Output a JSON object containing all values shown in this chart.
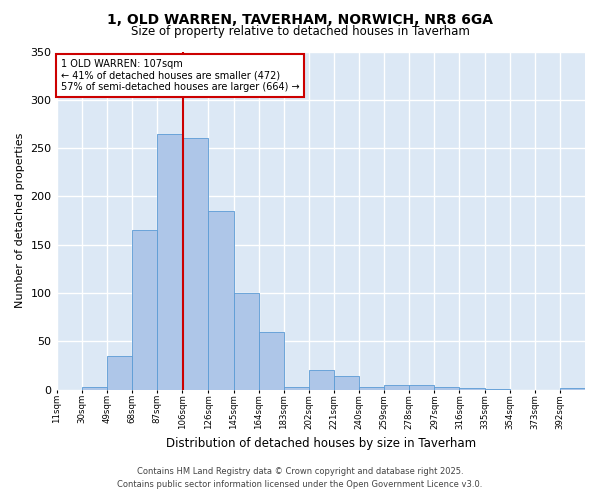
{
  "title": "1, OLD WARREN, TAVERHAM, NORWICH, NR8 6GA",
  "subtitle": "Size of property relative to detached houses in Taverham",
  "xlabel": "Distribution of detached houses by size in Taverham",
  "ylabel": "Number of detached properties",
  "bin_labels": [
    "11sqm",
    "30sqm",
    "49sqm",
    "68sqm",
    "87sqm",
    "106sqm",
    "126sqm",
    "145sqm",
    "164sqm",
    "183sqm",
    "202sqm",
    "221sqm",
    "240sqm",
    "259sqm",
    "278sqm",
    "297sqm",
    "316sqm",
    "335sqm",
    "354sqm",
    "373sqm",
    "392sqm"
  ],
  "bin_edges": [
    11,
    30,
    49,
    68,
    87,
    106,
    126,
    145,
    164,
    183,
    202,
    221,
    240,
    259,
    278,
    297,
    316,
    335,
    354,
    373,
    392
  ],
  "bar_heights": [
    0,
    3,
    35,
    165,
    265,
    260,
    185,
    100,
    60,
    3,
    20,
    14,
    3,
    5,
    5,
    3,
    2,
    1,
    0,
    0,
    2
  ],
  "bar_color": "#aec6e8",
  "bar_edge_color": "#5b9bd5",
  "property_line_x": 107,
  "property_line_color": "#cc0000",
  "annotation_title": "1 OLD WARREN: 107sqm",
  "annotation_line1": "← 41% of detached houses are smaller (472)",
  "annotation_line2": "57% of semi-detached houses are larger (664) →",
  "annotation_box_color": "#cc0000",
  "ylim": [
    0,
    350
  ],
  "background_color": "#dce8f5",
  "grid_color": "#ffffff",
  "fig_background": "#ffffff",
  "footer_line1": "Contains HM Land Registry data © Crown copyright and database right 2025.",
  "footer_line2": "Contains public sector information licensed under the Open Government Licence v3.0."
}
